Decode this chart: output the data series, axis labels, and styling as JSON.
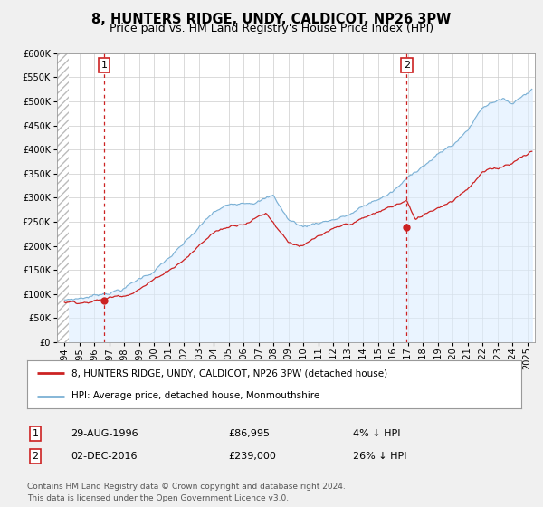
{
  "title": "8, HUNTERS RIDGE, UNDY, CALDICOT, NP26 3PW",
  "subtitle": "Price paid vs. HM Land Registry's House Price Index (HPI)",
  "ylim": [
    0,
    600000
  ],
  "xlim_start": 1993.5,
  "xlim_end": 2025.5,
  "background_color": "#f0f0f0",
  "plot_background": "#ffffff",
  "hpi_fill_color": "#ddeeff",
  "grid_color": "#cccccc",
  "sale1_date": 1996.66,
  "sale1_price": 86995,
  "sale1_label": "1",
  "sale2_date": 2016.92,
  "sale2_price": 239000,
  "sale2_label": "2",
  "hpi_color": "#7ab0d4",
  "price_color": "#cc2222",
  "hatch_color": "#cccccc",
  "legend_label_price": "8, HUNTERS RIDGE, UNDY, CALDICOT, NP26 3PW (detached house)",
  "legend_label_hpi": "HPI: Average price, detached house, Monmouthshire",
  "table_row1": [
    "1",
    "29-AUG-1996",
    "£86,995",
    "4% ↓ HPI"
  ],
  "table_row2": [
    "2",
    "02-DEC-2016",
    "£239,000",
    "26% ↓ HPI"
  ],
  "footer_text": "Contains HM Land Registry data © Crown copyright and database right 2024.\nThis data is licensed under the Open Government Licence v3.0.",
  "title_fontsize": 10.5,
  "subtitle_fontsize": 9,
  "tick_fontsize": 7,
  "legend_fontsize": 7.5,
  "table_fontsize": 8,
  "footer_fontsize": 6.5
}
